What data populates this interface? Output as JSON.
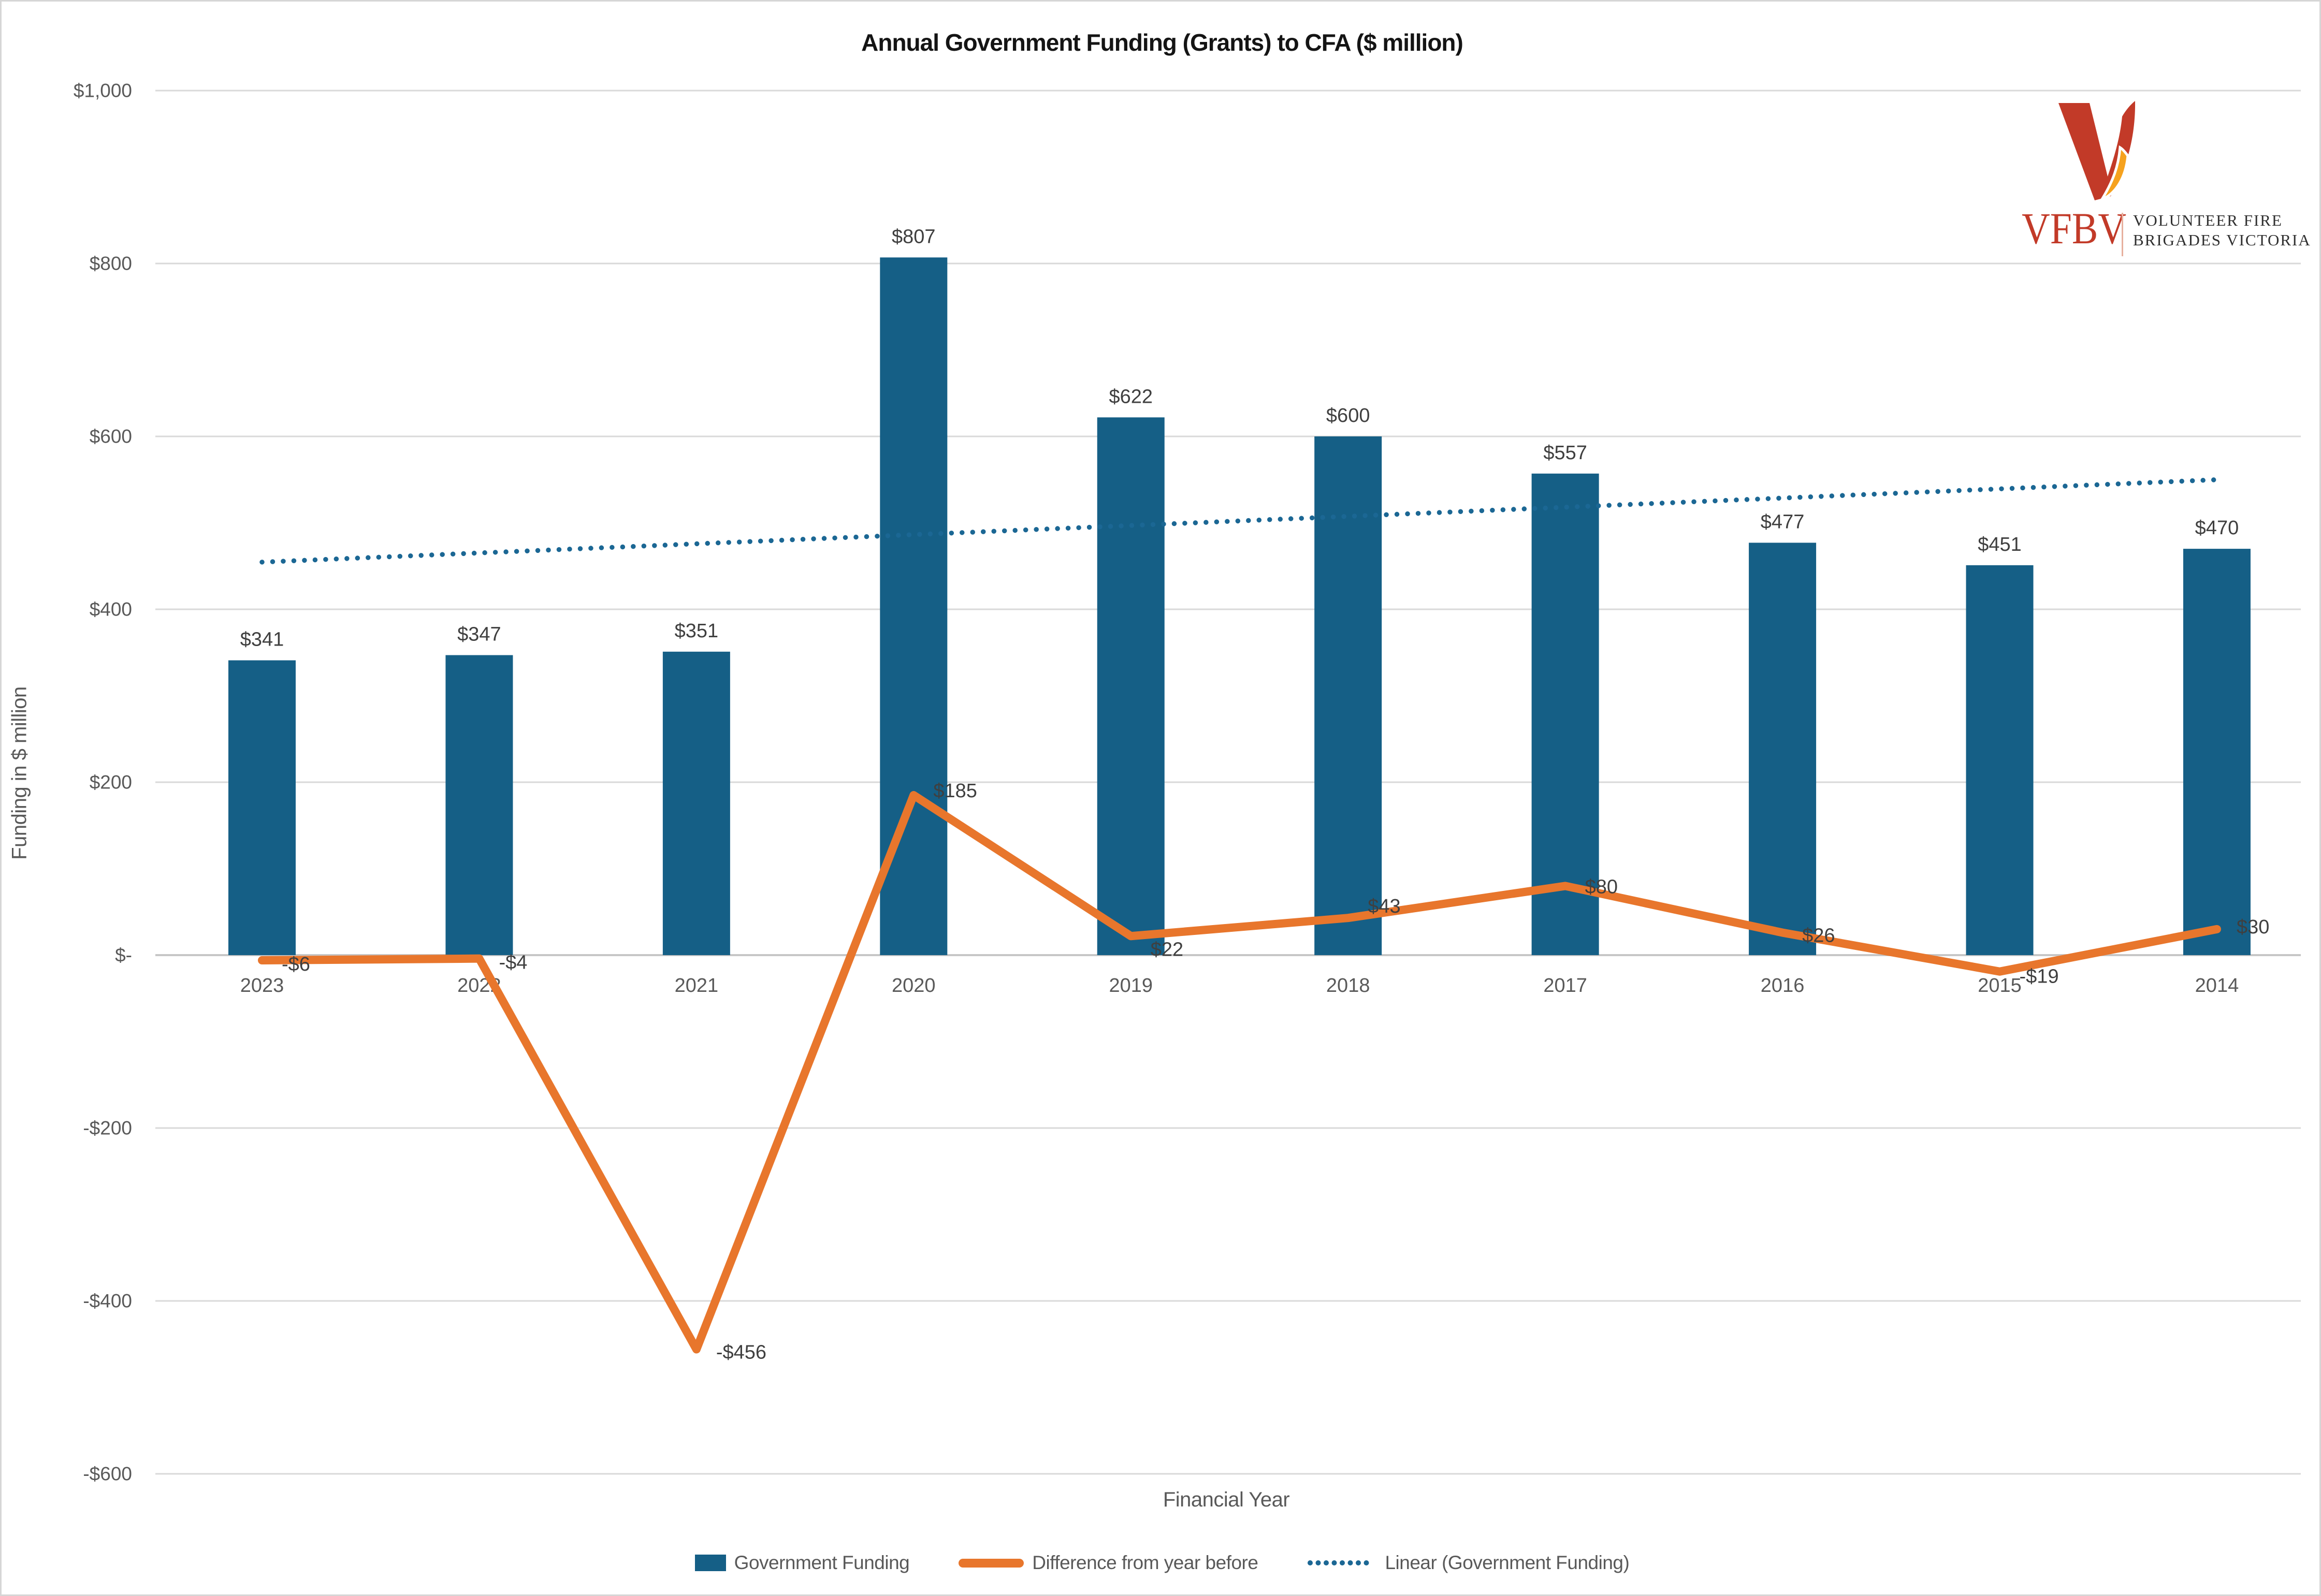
{
  "title": "Annual Government Funding (Grants) to CFA ($ million)",
  "logo": {
    "acronym": "VFBV",
    "line1": "VOLUNTEER FIRE",
    "line2": "BRIGADES VICTORIA",
    "red": "#c23a28",
    "flame_orange": "#f6a21e"
  },
  "colors": {
    "bar": "#155f86",
    "diff_line": "#e8762c",
    "trendline": "#1b6794",
    "gridline": "#d9d9d9",
    "zero_line": "#c6c6c6",
    "tick_text": "#595959",
    "data_label_text": "#3f3f3f"
  },
  "chart_data": {
    "type": "bar",
    "title": "Annual Government Funding (Grants) to CFA ($ million)",
    "xlabel": "Financial Year",
    "ylabel": "Funding in $ million",
    "ylim": [
      -600,
      1000
    ],
    "grid": true,
    "legend_position": "bottom",
    "categories": [
      "2023",
      "2022",
      "2021",
      "2020",
      "2019",
      "2018",
      "2017",
      "2016",
      "2015",
      "2014"
    ],
    "series": [
      {
        "name": "Government Funding",
        "type": "bar",
        "values": [
          341,
          347,
          351,
          807,
          622,
          600,
          557,
          477,
          451,
          470
        ],
        "labels": [
          "$341",
          "$347",
          "$351",
          "$807",
          "$622",
          "$600",
          "$557",
          "$477",
          "$451",
          "$470"
        ]
      },
      {
        "name": "Difference from year before",
        "type": "line",
        "values": [
          -6,
          -4,
          -456,
          185,
          22,
          43,
          80,
          26,
          -19,
          30
        ],
        "labels": [
          "-$6",
          "-$4",
          "-$456",
          "$185",
          "$22",
          "$43",
          "$80",
          "$26",
          "-$19",
          "$30"
        ]
      },
      {
        "name": "Linear (Government Funding)",
        "type": "linear_trendline",
        "endpoints": [
          454.6,
          549.9
        ]
      }
    ],
    "yticks": [
      {
        "value": 1000,
        "label": "$1,000"
      },
      {
        "value": 800,
        "label": "$800"
      },
      {
        "value": 600,
        "label": "$600"
      },
      {
        "value": 400,
        "label": "$400"
      },
      {
        "value": 200,
        "label": "$200"
      },
      {
        "value": 0,
        "label": "$-"
      },
      {
        "value": -200,
        "label": "-$200"
      },
      {
        "value": -400,
        "label": "-$400"
      },
      {
        "value": -600,
        "label": "-$600"
      }
    ]
  },
  "legend": {
    "items": [
      {
        "label": "Government Funding",
        "swatch": "bar"
      },
      {
        "label": "Difference from year before",
        "swatch": "line"
      },
      {
        "label": "Linear (Government Funding)",
        "swatch": "dotted"
      }
    ]
  }
}
